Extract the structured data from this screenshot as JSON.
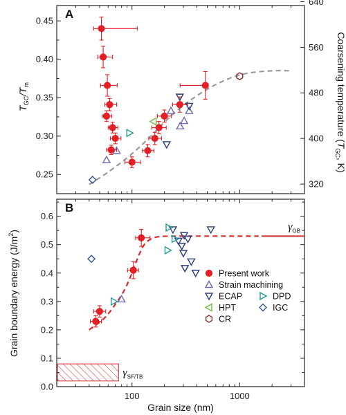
{
  "chart_data": [
    {
      "panel": "A",
      "type": "scatter",
      "ylabel_left": {
        "main": "T",
        "sub": "GC",
        "rest": "/T",
        "sub2": "m"
      },
      "ylabel_right": {
        "main": "Coarsening temperature (",
        "italic": "T",
        "sub": "GC",
        "rest": ", K)"
      },
      "x_scale": "log",
      "xlim": [
        20,
        4000
      ],
      "ylim": [
        0.225,
        0.47
      ],
      "yticks": [
        "0.25",
        "0.30",
        "0.35",
        "0.40",
        "0.45"
      ],
      "right_ticks": [
        {
          "label": "320",
          "y": 0.2375
        },
        {
          "label": "400",
          "y": 0.2969
        },
        {
          "label": "480",
          "y": 0.3563
        },
        {
          "label": "560",
          "y": 0.4156
        },
        {
          "label": "640",
          "y": 0.475
        }
      ],
      "present_work": [
        {
          "x": 52,
          "y": 0.44,
          "xerr": [
            8,
            60
          ],
          "yerr": 0.015
        },
        {
          "x": 54,
          "y": 0.403,
          "xerr": [
            6,
            12
          ],
          "yerr": 0.014
        },
        {
          "x": 59,
          "y": 0.366,
          "xerr": [
            8,
            14
          ],
          "yerr": 0.014
        },
        {
          "x": 62,
          "y": 0.341,
          "xerr": [
            6,
            10
          ],
          "yerr": 0.008
        },
        {
          "x": 58,
          "y": 0.326,
          "xerr": [
            5,
            7
          ],
          "yerr": 0.007
        },
        {
          "x": 66,
          "y": 0.311,
          "xerr": [
            6,
            8
          ],
          "yerr": 0.007
        },
        {
          "x": 70,
          "y": 0.297,
          "xerr": [
            7,
            9
          ],
          "yerr": 0.007
        },
        {
          "x": 64,
          "y": 0.282,
          "xerr": [
            6,
            8
          ],
          "yerr": 0.006
        },
        {
          "x": 100,
          "y": 0.266,
          "xerr": [
            14,
            20
          ],
          "yerr": 0.007
        },
        {
          "x": 140,
          "y": 0.281,
          "xerr": [
            15,
            20
          ],
          "yerr": 0.008
        },
        {
          "x": 163,
          "y": 0.297,
          "xerr": [
            20,
            25
          ],
          "yerr": 0.008
        },
        {
          "x": 178,
          "y": 0.311,
          "xerr": [
            25,
            30
          ],
          "yerr": 0.008
        },
        {
          "x": 200,
          "y": 0.326,
          "xerr": [
            28,
            32
          ],
          "yerr": 0.008
        },
        {
          "x": 278,
          "y": 0.341,
          "xerr": [
            40,
            50
          ],
          "yerr": 0.01
        },
        {
          "x": 480,
          "y": 0.366,
          "xerr": [
            200,
            30
          ],
          "yerr": 0.018
        }
      ],
      "strain_machining": [
        {
          "x": 58,
          "y": 0.269
        },
        {
          "x": 72,
          "y": 0.281
        },
        {
          "x": 230,
          "y": 0.333
        },
        {
          "x": 280,
          "y": 0.313
        },
        {
          "x": 305,
          "y": 0.32
        },
        {
          "x": 340,
          "y": 0.333
        }
      ],
      "ecap": [
        {
          "x": 210,
          "y": 0.289
        },
        {
          "x": 278,
          "y": 0.351
        },
        {
          "x": 340,
          "y": 0.339
        }
      ],
      "dpd": [
        {
          "x": 95,
          "y": 0.304
        }
      ],
      "hpt": [
        {
          "x": 158,
          "y": 0.319
        }
      ],
      "cr": [
        {
          "x": 1000,
          "y": 0.378
        }
      ],
      "igc": [
        {
          "x": 43,
          "y": 0.243
        }
      ],
      "trend": [
        [
          40,
          0.237
        ],
        [
          60,
          0.253
        ],
        [
          100,
          0.277
        ],
        [
          150,
          0.3
        ],
        [
          200,
          0.318
        ],
        [
          300,
          0.34
        ],
        [
          500,
          0.361
        ],
        [
          800,
          0.375
        ],
        [
          1200,
          0.382
        ],
        [
          2000,
          0.385
        ],
        [
          3000,
          0.385
        ]
      ]
    },
    {
      "panel": "B",
      "type": "scatter",
      "ylabel": {
        "main": "Grain boundary energy (J/m",
        "sup": "2",
        "rest": ")"
      },
      "xlabel": "Grain size (nm)",
      "x_scale": "log",
      "xlim": [
        20,
        4000
      ],
      "ylim": [
        0,
        0.66
      ],
      "yticks": [
        "0.0",
        "0.1",
        "0.2",
        "0.3",
        "0.4",
        "0.5",
        "0.6"
      ],
      "xticks": [
        "100",
        "1000"
      ],
      "present_work": [
        {
          "x": 46,
          "y": 0.23,
          "xerr": [
            5,
            6
          ],
          "yerr": 0.02
        },
        {
          "x": 50,
          "y": 0.265,
          "xerr": [
            6,
            7
          ],
          "yerr": 0.02
        },
        {
          "x": 103,
          "y": 0.41,
          "xerr": [
            12,
            12
          ],
          "yerr": 0.03
        },
        {
          "x": 122,
          "y": 0.524,
          "xerr": [
            14,
            25
          ],
          "yerr": 0.03
        }
      ],
      "strain_machining": [
        {
          "x": 80,
          "y": 0.308
        }
      ],
      "ecap": [
        {
          "x": 240,
          "y": 0.553
        },
        {
          "x": 270,
          "y": 0.513
        },
        {
          "x": 290,
          "y": 0.495
        },
        {
          "x": 300,
          "y": 0.47
        },
        {
          "x": 305,
          "y": 0.533
        },
        {
          "x": 310,
          "y": 0.417
        },
        {
          "x": 330,
          "y": 0.52
        },
        {
          "x": 355,
          "y": 0.44
        },
        {
          "x": 390,
          "y": 0.4
        },
        {
          "x": 540,
          "y": 0.553
        }
      ],
      "dpd": [
        {
          "x": 68,
          "y": 0.3
        },
        {
          "x": 215,
          "y": 0.48
        },
        {
          "x": 220,
          "y": 0.56
        },
        {
          "x": 250,
          "y": 0.52
        }
      ],
      "igc": [
        {
          "x": 42,
          "y": 0.45
        }
      ],
      "fit": [
        [
          40,
          0.2
        ],
        [
          55,
          0.24
        ],
        [
          70,
          0.29
        ],
        [
          85,
          0.34
        ],
        [
          100,
          0.4
        ],
        [
          115,
          0.46
        ],
        [
          130,
          0.5
        ],
        [
          150,
          0.52
        ],
        [
          180,
          0.528
        ],
        [
          250,
          0.53
        ],
        [
          1500,
          0.53
        ]
      ],
      "gamma_gb": {
        "value": 0.53,
        "x_range": [
          1600,
          4000
        ],
        "label": "γ",
        "sub": "GB"
      },
      "gamma_sftb": {
        "y_range": [
          0.02,
          0.08
        ],
        "x_range": [
          20,
          75
        ],
        "label": "γ",
        "sub": "SF/TB"
      },
      "legend": [
        {
          "marker": "present",
          "label": "Present work"
        },
        {
          "marker": "strain",
          "label": "Strain machining"
        },
        {
          "marker": "ecap",
          "label": "ECAP"
        },
        {
          "marker": "dpd",
          "label": "DPD"
        },
        {
          "marker": "hpt",
          "label": "HPT"
        },
        {
          "marker": "igc",
          "label": "IGC"
        },
        {
          "marker": "cr",
          "label": "CR"
        }
      ]
    }
  ],
  "colors": {
    "present": "#e31e24",
    "strain": "#6d67b0",
    "ecap": "#2a3c7a",
    "dpd": "#1d9a95",
    "hpt": "#6dbd45",
    "igc": "#2f56a3",
    "cr": "#8b2c2c",
    "trend": "#9a9a9a",
    "fit": "#d42a2a"
  }
}
